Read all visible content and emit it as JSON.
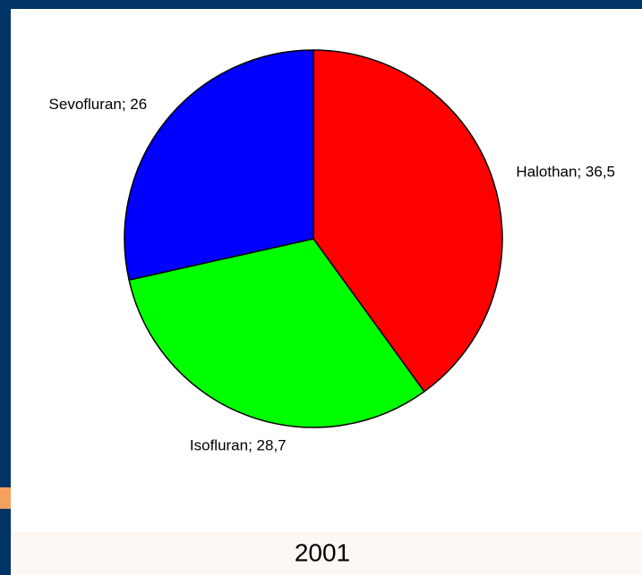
{
  "chart_data": {
    "type": "pie",
    "title": "2001",
    "categories": [
      "Halothan",
      "Isofluran",
      "Sevofluran"
    ],
    "values": [
      36.5,
      28.7,
      26
    ],
    "value_labels": [
      "36,5",
      "28,7",
      "26"
    ],
    "colors": [
      "#ff0000",
      "#00ff00",
      "#0000ff"
    ]
  }
}
